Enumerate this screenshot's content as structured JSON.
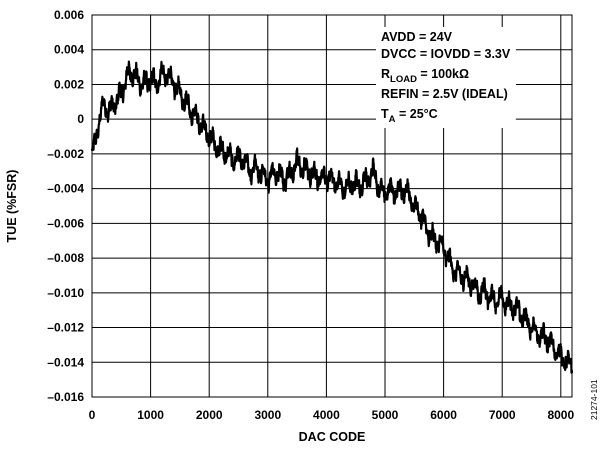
{
  "chart_data": {
    "type": "line",
    "title": "",
    "xlabel": "DAC CODE",
    "ylabel": "TUE (%FSR)",
    "xlim": [
      0,
      8191
    ],
    "ylim": [
      -0.016,
      0.006
    ],
    "x_ticks": [
      0,
      1000,
      2000,
      3000,
      4000,
      5000,
      6000,
      7000,
      8000
    ],
    "x_tick_labels": [
      "0",
      "1000",
      "2000",
      "3000",
      "4000",
      "5000",
      "6000",
      "7000",
      "8000"
    ],
    "y_ticks": [
      0.006,
      0.004,
      0.002,
      0,
      -0.002,
      -0.004,
      -0.006,
      -0.008,
      -0.01,
      -0.012,
      -0.014,
      -0.016
    ],
    "y_tick_labels": [
      "0.006",
      "0.004",
      "0.002",
      "0",
      "–0.002",
      "–0.004",
      "–0.006",
      "–0.008",
      "–0.010",
      "–0.012",
      "–0.014",
      "–0.016"
    ],
    "grid": true,
    "series_color": "#000000",
    "series": [
      {
        "x": [
          0,
          50,
          120,
          200,
          300,
          400,
          500,
          600,
          700,
          800,
          900,
          1000,
          1100,
          1200,
          1300,
          1400,
          1500,
          1600,
          1700,
          1800,
          1900,
          2000,
          2100,
          2200,
          2300,
          2400,
          2500,
          2600,
          2700,
          2800,
          2900,
          3000,
          3100,
          3200,
          3300,
          3400,
          3500,
          3600,
          3700,
          3800,
          3900,
          4000,
          4100,
          4200,
          4300,
          4400,
          4500,
          4600,
          4700,
          4800,
          4900,
          5000,
          5100,
          5200,
          5300,
          5400,
          5500,
          5600,
          5700,
          5800,
          5900,
          6000,
          6100,
          6200,
          6300,
          6400,
          6500,
          6600,
          6700,
          6800,
          6900,
          7000,
          7100,
          7200,
          7300,
          7400,
          7500,
          7600,
          7700,
          7800,
          7900,
          8000,
          8100,
          8191
        ],
        "y": [
          -0.002,
          -0.0015,
          0.0,
          0.0008,
          0.0005,
          0.001,
          0.0015,
          0.0025,
          0.0027,
          0.0022,
          0.002,
          0.0023,
          0.002,
          0.0027,
          0.0025,
          0.002,
          0.0015,
          0.001,
          0.0005,
          0.0,
          -0.0005,
          -0.001,
          -0.0015,
          -0.0018,
          -0.002,
          -0.0023,
          -0.0022,
          -0.0025,
          -0.003,
          -0.0028,
          -0.0032,
          -0.0035,
          -0.003,
          -0.0032,
          -0.0035,
          -0.003,
          -0.0025,
          -0.0028,
          -0.003,
          -0.0032,
          -0.0035,
          -0.0033,
          -0.0035,
          -0.0037,
          -0.004,
          -0.0038,
          -0.0037,
          -0.0038,
          -0.0035,
          -0.003,
          -0.004,
          -0.0042,
          -0.004,
          -0.0043,
          -0.004,
          -0.0042,
          -0.005,
          -0.0055,
          -0.0062,
          -0.0068,
          -0.007,
          -0.0075,
          -0.0082,
          -0.0088,
          -0.009,
          -0.0092,
          -0.0095,
          -0.01,
          -0.0098,
          -0.0103,
          -0.0105,
          -0.0103,
          -0.0107,
          -0.0108,
          -0.0112,
          -0.0115,
          -0.012,
          -0.0123,
          -0.0125,
          -0.0128,
          -0.0133,
          -0.0137,
          -0.014,
          -0.014
        ]
      }
    ],
    "annotations": [
      {
        "parts": [
          {
            "t": "AVDD = 24V"
          }
        ]
      },
      {
        "parts": [
          {
            "t": "DVCC = IOVDD = 3.3V"
          }
        ]
      },
      {
        "parts": [
          {
            "t": "R"
          },
          {
            "t": "LOAD",
            "sub": true
          },
          {
            "t": " = 100kΩ"
          }
        ]
      },
      {
        "parts": [
          {
            "t": "REFIN = 2.5V (IDEAL)"
          }
        ]
      },
      {
        "parts": [
          {
            "t": "T"
          },
          {
            "t": "A",
            "sub": true
          },
          {
            "t": " = 25°C"
          }
        ]
      }
    ],
    "annotation_position": "top-right"
  },
  "figure_id": "21274-101"
}
